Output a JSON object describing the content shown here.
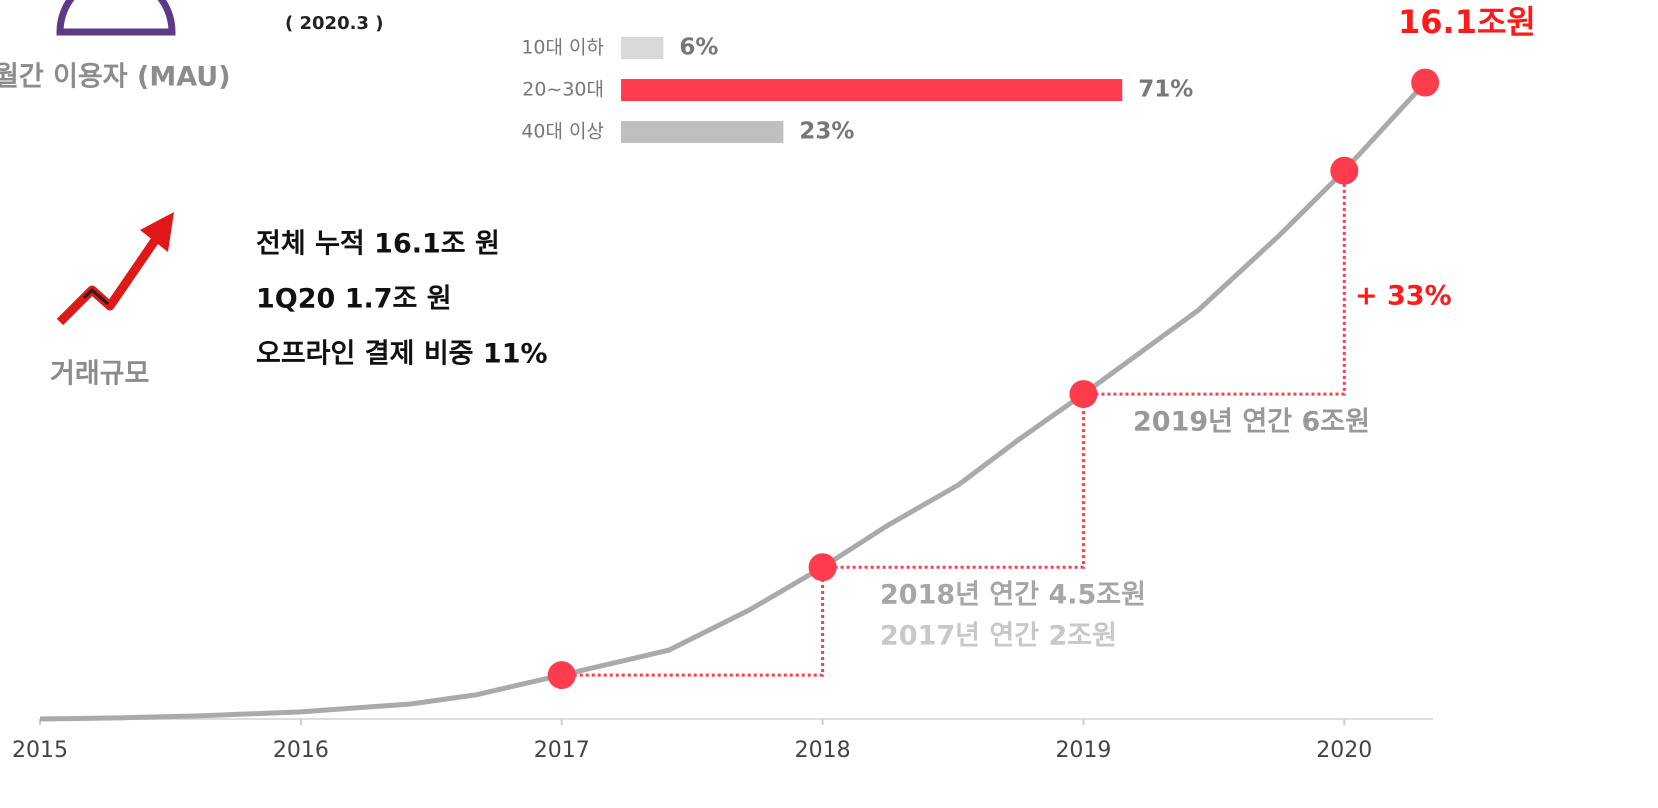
{
  "header": {
    "mau_label": "월간 이용자 (MAU)",
    "date": "( 2020.3 )"
  },
  "summary": {
    "label": "거래규모",
    "lines": [
      "전체 누적 16.1조 원",
      "1Q20 1.7조 원",
      "오프라인 결제 비중 11%"
    ]
  },
  "chart_data": [
    {
      "type": "line",
      "x": [
        2015,
        2015.31,
        2015.61,
        2016,
        2016.42,
        2016.67,
        2017,
        2017.41,
        2017.72,
        2018,
        2018.25,
        2018.52,
        2018.75,
        2019,
        2019.44,
        2019.75,
        2020,
        2020.31
      ],
      "values": [
        0,
        0.03,
        0.08,
        0.18,
        0.38,
        0.61,
        1.11,
        1.74,
        2.76,
        3.84,
        4.9,
        5.92,
        7.06,
        8.22,
        10.34,
        12.23,
        13.87,
        16.1
      ],
      "color": "#aaaaaa",
      "markers": {
        "x": [
          2017,
          2018,
          2019,
          2020,
          2020.31
        ],
        "values": [
          1.11,
          3.84,
          8.22,
          13.87,
          16.1
        ],
        "color": "#ff3b4e"
      },
      "xlim": [
        2015,
        2020.34
      ],
      "ylim": [
        0,
        17
      ],
      "xticks": [
        2015,
        2016,
        2017,
        2018,
        2019,
        2020
      ],
      "annotations": [
        "16.1조원",
        "+ 33%",
        "2019년 연간 6조원",
        "2018년 연간 4.5조원",
        "2017년 연간 2조원"
      ]
    },
    {
      "type": "hbar",
      "categories": [
        "10대 이하",
        "20~30대",
        "40대 이상"
      ],
      "values": [
        6,
        71,
        23
      ],
      "value_labels": [
        "6%",
        "71%",
        "23%"
      ],
      "colors": [
        "#d9d9d9",
        "#ff3b4e",
        "#bfbfbf"
      ]
    }
  ]
}
